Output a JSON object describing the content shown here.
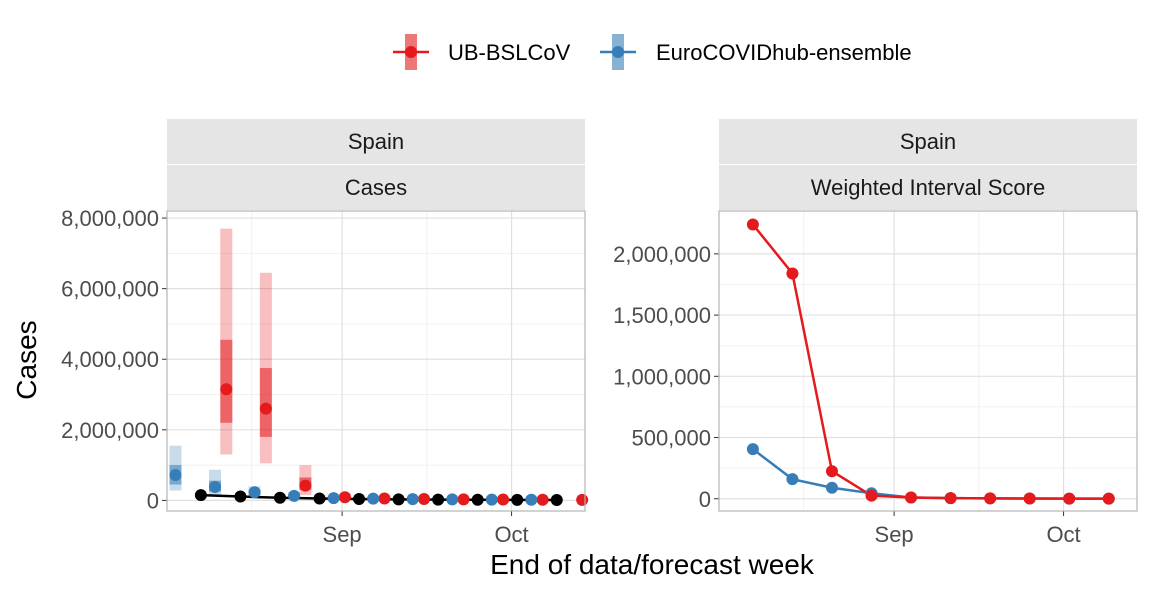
{
  "legend": {
    "items": [
      {
        "label": "UB-BSLCoV",
        "color": "#E41A1C"
      },
      {
        "label": "EuroCOVIDhub-ensemble",
        "color": "#377EB8"
      }
    ]
  },
  "axes": {
    "x_title": "End of data/forecast week",
    "y_title": "Cases"
  },
  "chart_data": [
    {
      "type": "line",
      "strip_top": "Spain",
      "strip_bottom": "Cases",
      "ylim": [
        -300000,
        8200000
      ],
      "y_ticks": [
        0,
        2000000,
        4000000,
        6000000,
        8000000
      ],
      "y_tick_labels": [
        "0",
        "2,000,000",
        "4,000,000",
        "6,000,000",
        "8,000,000"
      ],
      "x_ticks": [
        {
          "date": "2021-09-01",
          "label": "Sep"
        },
        {
          "date": "2021-10-01",
          "label": "Oct"
        }
      ],
      "x": [
        "2021-08-07",
        "2021-08-14",
        "2021-08-21",
        "2021-08-28",
        "2021-09-04",
        "2021-09-11",
        "2021-09-18",
        "2021-09-25",
        "2021-10-02",
        "2021-10-09"
      ],
      "observed": {
        "color": "#000000",
        "values": [
          150000,
          110000,
          75000,
          55000,
          40000,
          30000,
          22000,
          18000,
          15000,
          12000
        ]
      },
      "series": [
        {
          "name": "UB-BSLCoV",
          "color": "#E41A1C",
          "median": [
            3150000,
            2600000,
            420000,
            90000,
            55000,
            40000,
            30000,
            25000,
            20000,
            15000
          ],
          "inner_lower": [
            2200000,
            1800000,
            300000,
            60000,
            38000,
            28000,
            21000,
            17000,
            14000,
            10000
          ],
          "inner_upper": [
            4550000,
            3750000,
            650000,
            130000,
            80000,
            60000,
            45000,
            36000,
            30000,
            22000
          ],
          "outer_lower": [
            1300000,
            1050000,
            150000,
            30000,
            20000,
            15000,
            11000,
            9000,
            7000,
            5000
          ],
          "outer_upper": [
            7700000,
            6450000,
            1000000,
            200000,
            130000,
            95000,
            70000,
            55000,
            45000,
            35000
          ]
        },
        {
          "name": "EuroCOVIDhub-ensemble",
          "color": "#377EB8",
          "median": [
            720000,
            380000,
            230000,
            130000,
            65000,
            50000,
            35000,
            28000,
            22000,
            18000
          ],
          "inner_lower": [
            450000,
            250000,
            170000,
            95000,
            50000,
            38000,
            27000,
            21000,
            17000,
            13000
          ],
          "inner_upper": [
            1000000,
            560000,
            300000,
            170000,
            85000,
            65000,
            46000,
            36000,
            29000,
            24000
          ],
          "outer_lower": [
            280000,
            150000,
            110000,
            60000,
            30000,
            24000,
            17000,
            13000,
            10000,
            8000
          ],
          "outer_upper": [
            1550000,
            870000,
            400000,
            230000,
            110000,
            85000,
            60000,
            48000,
            38000,
            32000
          ]
        }
      ]
    },
    {
      "type": "line",
      "strip_top": "Spain",
      "strip_bottom": "Weighted Interval Score",
      "ylim": [
        -100000,
        2350000
      ],
      "y_ticks": [
        0,
        500000,
        1000000,
        1500000,
        2000000
      ],
      "y_tick_labels": [
        "0",
        "500,000",
        "1,000,000",
        "1,500,000",
        "2,000,000"
      ],
      "x_ticks": [
        {
          "date": "2021-09-01",
          "label": "Sep"
        },
        {
          "date": "2021-10-01",
          "label": "Oct"
        }
      ],
      "x": [
        "2021-08-07",
        "2021-08-14",
        "2021-08-21",
        "2021-08-28",
        "2021-09-04",
        "2021-09-11",
        "2021-09-18",
        "2021-09-25",
        "2021-10-02",
        "2021-10-09"
      ],
      "series": [
        {
          "name": "UB-BSLCoV",
          "color": "#E41A1C",
          "values": [
            2240000,
            1840000,
            225000,
            25000,
            10000,
            5000,
            3000,
            2000,
            1500,
            1000
          ]
        },
        {
          "name": "EuroCOVIDhub-ensemble",
          "color": "#377EB8",
          "values": [
            405000,
            160000,
            90000,
            45000,
            10000,
            5000,
            3000,
            2000,
            1500,
            1000
          ]
        }
      ]
    }
  ]
}
